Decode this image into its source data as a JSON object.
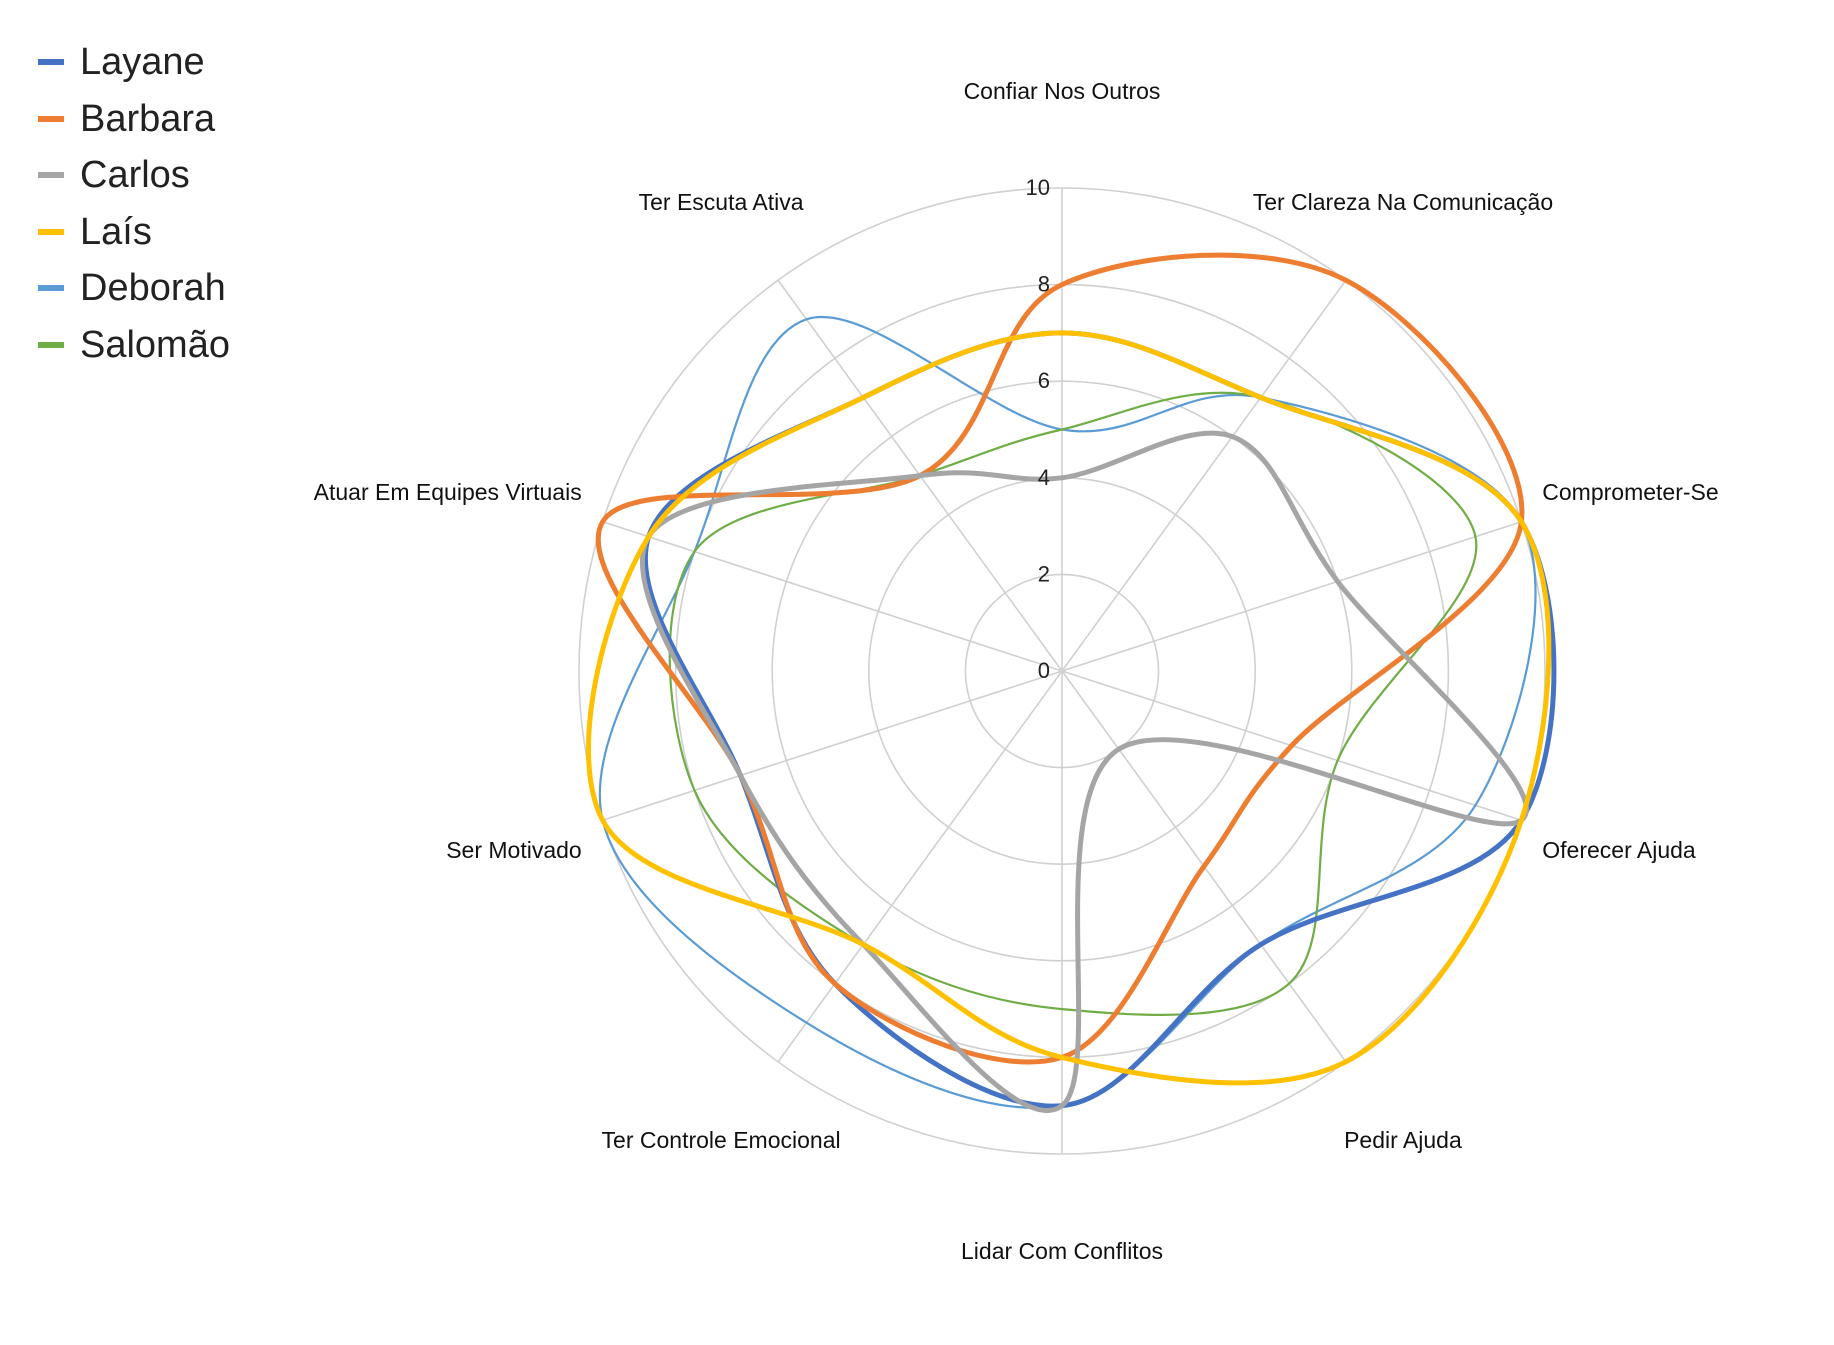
{
  "chart_data": {
    "type": "radar",
    "title": "",
    "categories": [
      "Confiar Nos Outros",
      "Ter Clareza Na Comunicação",
      "Comprometer-Se",
      "Oferecer Ajuda",
      "Pedir Ajuda",
      "Lidar Com Conflitos",
      "Ter Controle Emocional",
      "Ser Motivado",
      "Atuar Em Equipes Virtuais",
      "Ter Escuta Ativa"
    ],
    "radial_ticks": [
      "0",
      "2",
      "4",
      "6",
      "8",
      "10"
    ],
    "rlim": [
      0,
      10
    ],
    "grid": true,
    "smooth": true,
    "legend_position": "top-left",
    "series": [
      {
        "name": "Layane",
        "color": "#4472C4",
        "width": 5,
        "values": [
          7,
          7,
          10,
          10,
          7,
          9,
          8,
          7,
          9,
          7
        ]
      },
      {
        "name": "Barbara",
        "color": "#ED7D31",
        "width": 5,
        "values": [
          8,
          10,
          10,
          5,
          5,
          8,
          8,
          7,
          10,
          5
        ]
      },
      {
        "name": "Carlos",
        "color": "#A5A5A5",
        "width": 5,
        "values": [
          4,
          6,
          6,
          10,
          2,
          9,
          7,
          7,
          9,
          5
        ]
      },
      {
        "name": "Laís",
        "color": "#FFC000",
        "width": 5,
        "values": [
          7,
          7,
          10,
          10,
          10,
          8,
          7,
          10,
          9,
          7
        ]
      },
      {
        "name": "Deborah",
        "color": "#5B9BD5",
        "width": 2.2,
        "values": [
          5,
          7,
          10,
          9,
          7,
          9,
          9,
          10,
          8,
          9
        ]
      },
      {
        "name": "Salomão",
        "color": "#70AD47",
        "width": 2.2,
        "values": [
          5,
          7,
          9,
          6,
          8,
          7,
          7,
          8,
          8,
          5
        ]
      }
    ]
  }
}
